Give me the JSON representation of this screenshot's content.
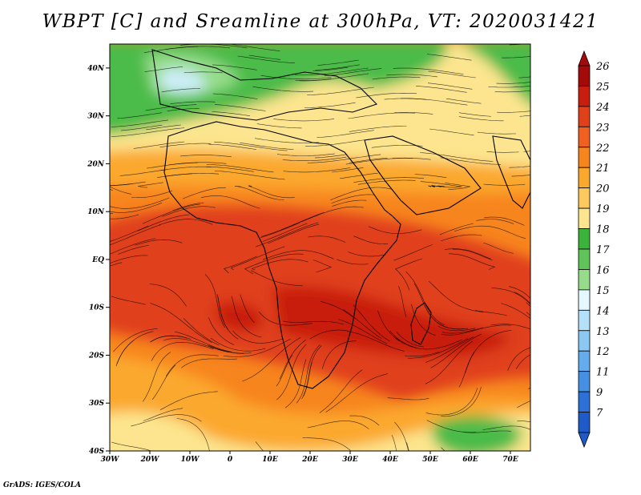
{
  "title": "WBPT [C] and Sreamline at 300hPa, VT: 2020031421",
  "footer": "GrADS: IGES/COLA",
  "map": {
    "lat_range": [
      -40,
      45
    ],
    "lon_range": [
      -30,
      75
    ],
    "lat_ticks": [
      {
        "value": 40,
        "label": "40N"
      },
      {
        "value": 30,
        "label": "30N"
      },
      {
        "value": 20,
        "label": "20N"
      },
      {
        "value": 10,
        "label": "10N"
      },
      {
        "value": 0,
        "label": "EQ"
      },
      {
        "value": -10,
        "label": "10S"
      },
      {
        "value": -20,
        "label": "20S"
      },
      {
        "value": -30,
        "label": "30S"
      },
      {
        "value": -40,
        "label": "40S"
      }
    ],
    "lon_ticks": [
      {
        "value": -30,
        "label": "30W"
      },
      {
        "value": -20,
        "label": "20W"
      },
      {
        "value": -10,
        "label": "10W"
      },
      {
        "value": 0,
        "label": "0"
      },
      {
        "value": 10,
        "label": "10E"
      },
      {
        "value": 20,
        "label": "20E"
      },
      {
        "value": 30,
        "label": "30E"
      },
      {
        "value": 40,
        "label": "40E"
      },
      {
        "value": 50,
        "label": "50E"
      },
      {
        "value": 60,
        "label": "60E"
      },
      {
        "value": 70,
        "label": "70E"
      }
    ]
  },
  "colorbar": {
    "levels": [
      {
        "label": "26",
        "color": "#a50a0a"
      },
      {
        "label": "25",
        "color": "#c81e0f"
      },
      {
        "label": "24",
        "color": "#e0401a"
      },
      {
        "label": "23",
        "color": "#f06020"
      },
      {
        "label": "22",
        "color": "#f7851e"
      },
      {
        "label": "21",
        "color": "#fba82f"
      },
      {
        "label": "20",
        "color": "#fcc95e"
      },
      {
        "label": "19",
        "color": "#fce58e"
      },
      {
        "label": "18",
        "color": "#3cb43c"
      },
      {
        "label": "17",
        "color": "#60c35a"
      },
      {
        "label": "16",
        "color": "#96dc8a"
      },
      {
        "label": "15",
        "color": "#e4f8ff"
      },
      {
        "label": "14",
        "color": "#b4e0fa"
      },
      {
        "label": "13",
        "color": "#8cc8f4"
      },
      {
        "label": "12",
        "color": "#64acee"
      },
      {
        "label": "11",
        "color": "#4690e4"
      },
      {
        "label": "9",
        "color": "#2c70d8"
      },
      {
        "label": "7",
        "color": "#1e5ac8"
      }
    ]
  },
  "field_colors": {
    "green": "#4cbb4a",
    "light_green": "#96dc8a",
    "pale_blue": "#cdeefa",
    "yellow": "#fce58e",
    "orange": "#f7851e",
    "red_orange": "#e0401a",
    "red": "#c81e0f"
  }
}
